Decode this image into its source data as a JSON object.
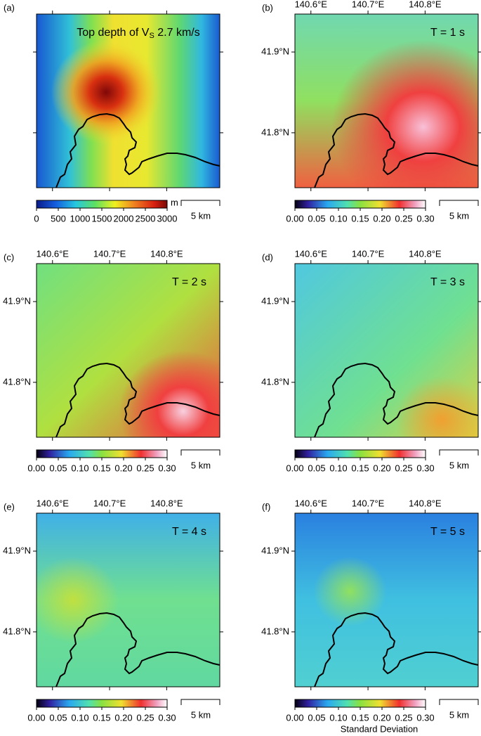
{
  "figure": {
    "xlim": [
      140.572,
      140.893
    ],
    "ylim": [
      41.732,
      41.947
    ],
    "lon_ticks": [
      {
        "value": 140.6,
        "label": "140.6°E"
      },
      {
        "value": 140.7,
        "label": "140.7°E"
      },
      {
        "value": 140.8,
        "label": "140.8°E"
      }
    ],
    "lat_ticks": [
      {
        "value": 41.9,
        "label": "41.9°N"
      },
      {
        "value": 41.8,
        "label": "41.8°N"
      }
    ],
    "scale_bar": "5 km",
    "colorbar_label": "Standard Deviation",
    "panels": [
      {
        "label": "(a)",
        "title": "Top depth of V",
        "title_sub": "S",
        "title_end": " 2.7 km/s",
        "show_coords": false,
        "colorbar": {
          "lim": [
            0,
            3000
          ],
          "ticks": [
            0,
            500,
            1000,
            1500,
            2000,
            2500,
            3000
          ],
          "unit": "m",
          "scheme": "depth"
        }
      },
      {
        "label": "(b)",
        "title": "T = 1 s",
        "show_coords": true,
        "colorbar": {
          "lim": [
            0,
            0.3
          ],
          "ticks": [
            {
              "value": 0,
              "label": "0.00"
            },
            0.05,
            {
              "value": 0.1,
              "label": "0.10"
            },
            0.15,
            {
              "value": 0.2,
              "label": "0.20"
            },
            0.25,
            {
              "value": 0.3,
              "label": "0.30"
            }
          ],
          "scheme": "sd"
        }
      },
      {
        "label": "(c)",
        "title": "T = 2 s",
        "show_coords": true,
        "colorbar": {
          "lim": [
            0,
            0.3
          ],
          "ticks": [
            {
              "value": 0,
              "label": "0.00"
            },
            0.05,
            {
              "value": 0.1,
              "label": "0.10"
            },
            0.15,
            {
              "value": 0.2,
              "label": "0.20"
            },
            0.25,
            {
              "value": 0.3,
              "label": "0.30"
            }
          ],
          "scheme": "sd"
        }
      },
      {
        "label": "(d)",
        "title": "T = 3 s",
        "show_coords": true,
        "colorbar": {
          "lim": [
            0,
            0.3
          ],
          "ticks": [
            {
              "value": 0,
              "label": "0.00"
            },
            0.05,
            {
              "value": 0.1,
              "label": "0.10"
            },
            0.15,
            {
              "value": 0.2,
              "label": "0.20"
            },
            0.25,
            {
              "value": 0.3,
              "label": "0.30"
            }
          ],
          "scheme": "sd"
        }
      },
      {
        "label": "(e)",
        "title": "T = 4 s",
        "show_coords": true,
        "colorbar": {
          "lim": [
            0,
            0.3
          ],
          "ticks": [
            {
              "value": 0,
              "label": "0.00"
            },
            0.05,
            {
              "value": 0.1,
              "label": "0.10"
            },
            0.15,
            {
              "value": 0.2,
              "label": "0.20"
            },
            0.25,
            {
              "value": 0.3,
              "label": "0.30"
            }
          ],
          "scheme": "sd"
        }
      },
      {
        "label": "(f)",
        "title": "T = 5 s",
        "show_coords": true,
        "colorbar": {
          "lim": [
            0,
            0.3
          ],
          "ticks": [
            {
              "value": 0,
              "label": "0.00"
            },
            0.05,
            {
              "value": 0.1,
              "label": "0.10"
            },
            0.15,
            {
              "value": 0.2,
              "label": "0.20"
            },
            0.25,
            {
              "value": 0.3,
              "label": "0.30"
            }
          ],
          "scheme": "sd"
        }
      }
    ]
  }
}
